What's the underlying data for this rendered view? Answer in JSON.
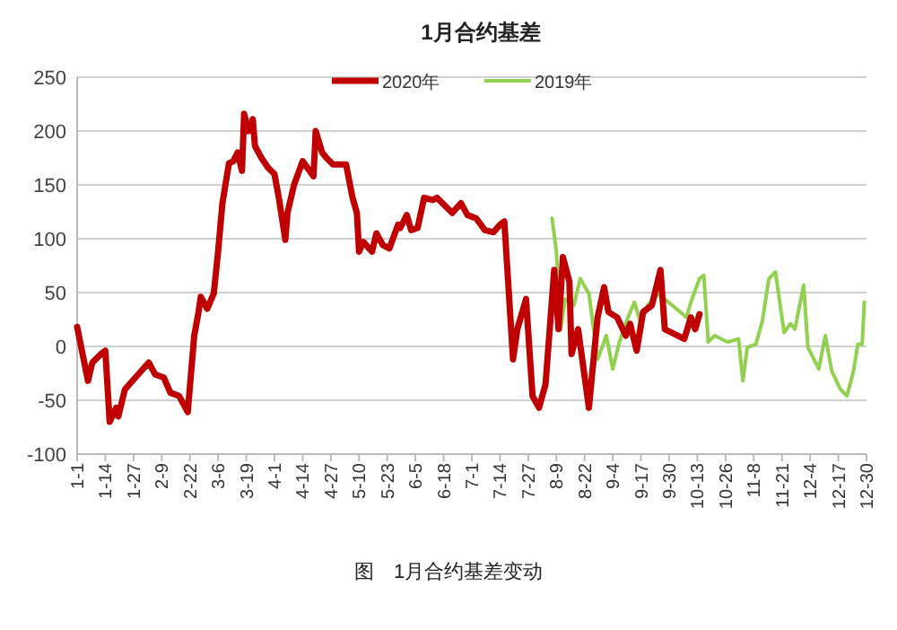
{
  "chart_data": {
    "type": "line",
    "title": "1月合约基差",
    "x": [
      "--01-01",
      "--01-06",
      "--01-08",
      "--01-12",
      "--01-14",
      "--01-16",
      "--01-19",
      "--01-20",
      "--01-23",
      "--02-03",
      "--02-06",
      "--02-10",
      "--02-13",
      "--02-17",
      "--02-21",
      "--02-24",
      "--02-26",
      "--02-27",
      "--03-01",
      "--03-04",
      "--03-06",
      "--03-08",
      "--03-11",
      "--03-13",
      "--03-15",
      "--03-17",
      "--03-18",
      "--03-20",
      "--03-22",
      "--03-23",
      "--03-26",
      "--03-29",
      "--04-01",
      "--04-03",
      "--04-06",
      "--04-07",
      "--04-10",
      "--04-14",
      "--04-19",
      "--04-20",
      "--04-23",
      "--04-25",
      "--04-28",
      "--05-04",
      "--05-07",
      "--05-09",
      "--05-10",
      "--05-12",
      "--05-16",
      "--05-18",
      "--05-21",
      "--05-24",
      "--05-28",
      "--05-29",
      "--06-01",
      "--06-03",
      "--06-06",
      "--06-09",
      "--06-13",
      "--06-15",
      "--06-22",
      "--06-26",
      "--06-29",
      "--07-03",
      "--07-07",
      "--07-11",
      "--07-14",
      "--07-16",
      "--07-20",
      "--07-22",
      "--07-26",
      "--07-29",
      "--08-01",
      "--08-04",
      "--08-08",
      "--08-10",
      "--08-12",
      "--08-15",
      "--08-16",
      "--08-19",
      "--08-24",
      "--08-28",
      "--08-31",
      "--09-02",
      "--09-06",
      "--09-10",
      "--09-12",
      "--09-15",
      "--09-18",
      "--09-22",
      "--09-26",
      "--09-28",
      "--10-07",
      "--10-10",
      "--10-12",
      "--10-14"
    ],
    "series": [
      {
        "name": "2020年",
        "color": "#c00000",
        "values": [
          18,
          -32,
          -15,
          -7,
          -4,
          -70,
          -57,
          -65,
          -40,
          -15,
          -26,
          -29,
          -43,
          -46,
          -61,
          10,
          32,
          46,
          35,
          49,
          88,
          133,
          170,
          172,
          180,
          163,
          216,
          200,
          211,
          186,
          175,
          166,
          160,
          138,
          99,
          124,
          150,
          172,
          158,
          200,
          180,
          175,
          169,
          169,
          138,
          124,
          88,
          97,
          88,
          105,
          94,
          91,
          113,
          110,
          122,
          108,
          110,
          138,
          136,
          138,
          124,
          133,
          122,
          119,
          108,
          106,
          113,
          116,
          -12,
          16,
          44,
          -46,
          -57,
          -35,
          71,
          16,
          83,
          60,
          -7,
          16,
          -57,
          27,
          55,
          32,
          27,
          10,
          21,
          -4,
          32,
          38,
          71,
          16,
          7,
          27,
          16,
          30
        ]
      },
      {
        "name": "2019年",
        "color": "#92d050",
        "x": [
          "--08-07",
          "--08-09",
          "--08-11",
          "--08-13",
          "--08-17",
          "--08-20",
          "--08-24",
          "--08-28",
          "--09-01",
          "--09-04",
          "--09-07",
          "--09-11",
          "--09-14",
          "--09-17",
          "--09-20",
          "--09-25",
          "--10-08",
          "--10-10",
          "--10-14",
          "--10-16",
          "--10-18",
          "--10-21",
          "--10-27",
          "--11-01",
          "--11-03",
          "--11-05",
          "--11-09",
          "--11-12",
          "--11-15",
          "--11-18",
          "--11-22",
          "--11-25",
          "--11-27",
          "--12-01",
          "--12-03",
          "--12-08",
          "--12-11",
          "--12-14",
          "--12-18",
          "--12-21",
          "--12-24",
          "--12-26",
          "--12-28",
          "--12-29"
        ],
        "values": [
          119,
          88,
          16,
          44,
          38,
          63,
          49,
          -12,
          10,
          -21,
          4,
          27,
          41,
          21,
          38,
          49,
          27,
          41,
          63,
          66,
          4,
          10,
          4,
          7,
          -32,
          -1,
          2,
          24,
          63,
          69,
          13,
          21,
          16,
          57,
          -1,
          -21,
          10,
          -23,
          -40,
          -46,
          -23,
          2,
          2,
          41
        ]
      }
    ],
    "xlim": [
      "--01-01",
      "--12-30"
    ],
    "xticks": [
      {
        "value": "--01-01",
        "label": "1-1"
      },
      {
        "value": "--01-14",
        "label": "1-14"
      },
      {
        "value": "--01-27",
        "label": "1-27"
      },
      {
        "value": "--02-09",
        "label": "2-9"
      },
      {
        "value": "--02-22",
        "label": "2-22"
      },
      {
        "value": "--03-06",
        "label": "3-6"
      },
      {
        "value": "--03-19",
        "label": "3-19"
      },
      {
        "value": "--04-01",
        "label": "4-1"
      },
      {
        "value": "--04-14",
        "label": "4-14"
      },
      {
        "value": "--04-27",
        "label": "4-27"
      },
      {
        "value": "--05-10",
        "label": "5-10"
      },
      {
        "value": "--05-23",
        "label": "5-23"
      },
      {
        "value": "--06-05",
        "label": "6-5"
      },
      {
        "value": "--06-18",
        "label": "6-18"
      },
      {
        "value": "--07-01",
        "label": "7-1"
      },
      {
        "value": "--07-14",
        "label": "7-14"
      },
      {
        "value": "--07-27",
        "label": "7-27"
      },
      {
        "value": "--08-09",
        "label": "8-9"
      },
      {
        "value": "--08-22",
        "label": "8-22"
      },
      {
        "value": "--09-04",
        "label": "9-4"
      },
      {
        "value": "--09-17",
        "label": "9-17"
      },
      {
        "value": "--09-30",
        "label": "9-30"
      },
      {
        "value": "--10-13",
        "label": "10-13"
      },
      {
        "value": "--10-26",
        "label": "10-26"
      },
      {
        "value": "--11-08",
        "label": "11-8"
      },
      {
        "value": "--11-21",
        "label": "11-21"
      },
      {
        "value": "--12-04",
        "label": "12-4"
      },
      {
        "value": "--12-17",
        "label": "12-17"
      },
      {
        "value": "--12-30",
        "label": "12-30"
      }
    ],
    "ylim": [
      -100,
      250
    ],
    "yticks": [
      -100,
      -50,
      0,
      50,
      100,
      150,
      200,
      250
    ],
    "grid": "y",
    "legend": "top",
    "marker": "none",
    "line_style": "solid",
    "annotations": [
      "图　1月合约基差变动"
    ]
  }
}
